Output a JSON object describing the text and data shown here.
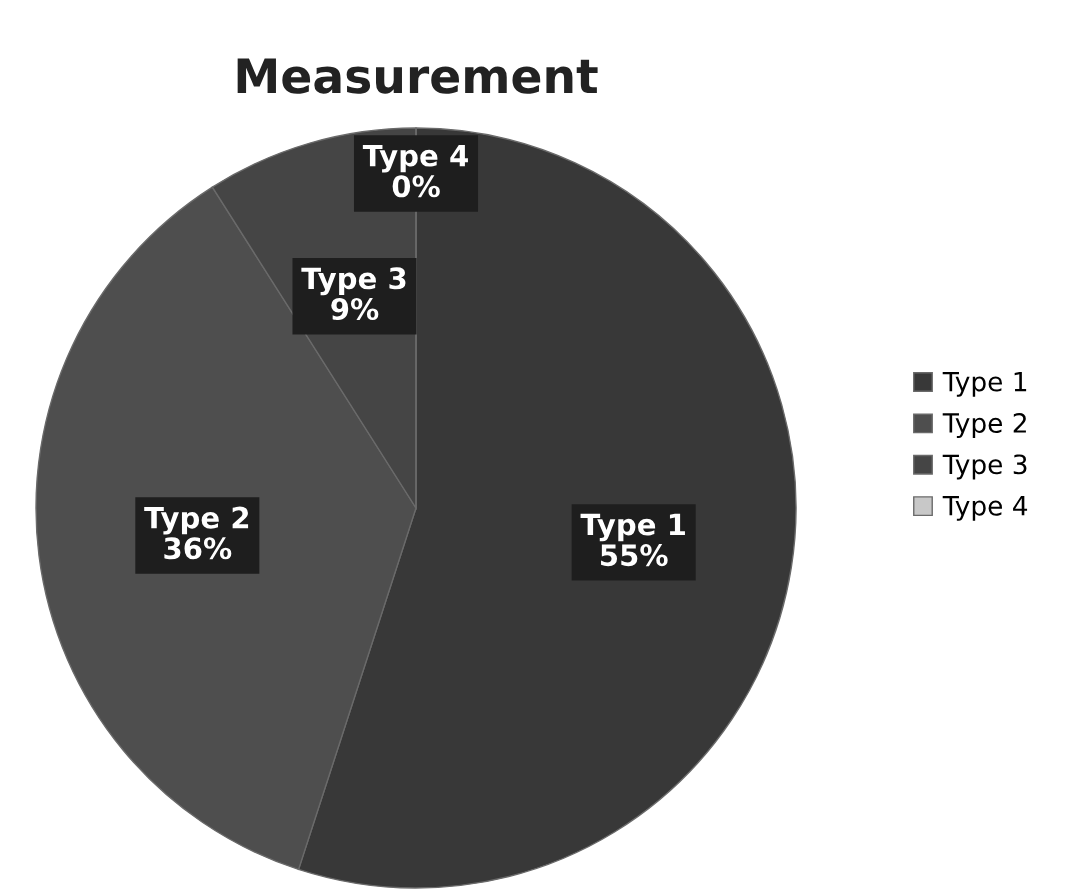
{
  "chart_data": {
    "type": "pie",
    "title": "Measurement",
    "categories": [
      "Type 1",
      "Type 2",
      "Type 3",
      "Type 4"
    ],
    "values": [
      55,
      36,
      9,
      0
    ],
    "value_labels": [
      "55%",
      "36%",
      "9%",
      "0%"
    ],
    "colors": [
      "#383838",
      "#4e4e4e",
      "#454545",
      "#c8c8c8"
    ],
    "legend": "right"
  }
}
